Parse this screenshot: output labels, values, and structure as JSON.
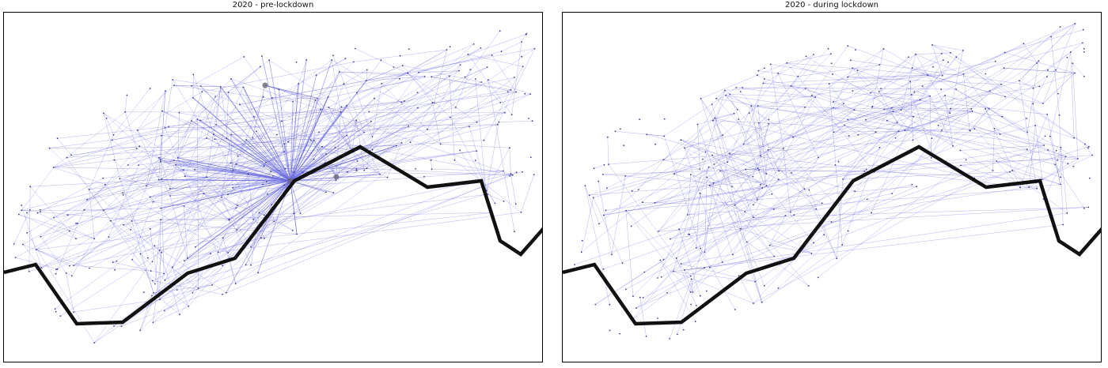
{
  "panels": [
    {
      "title": "2020 - pre-lockdown",
      "edge_color": "#5a5ae0",
      "hub_color": "#6a6adf",
      "border_line_color": "#111111"
    },
    {
      "title": "2020 - during lockdown",
      "edge_color": "#5a5ae0",
      "hub_color": "#6a6adf",
      "border_line_color": "#111111"
    }
  ]
}
